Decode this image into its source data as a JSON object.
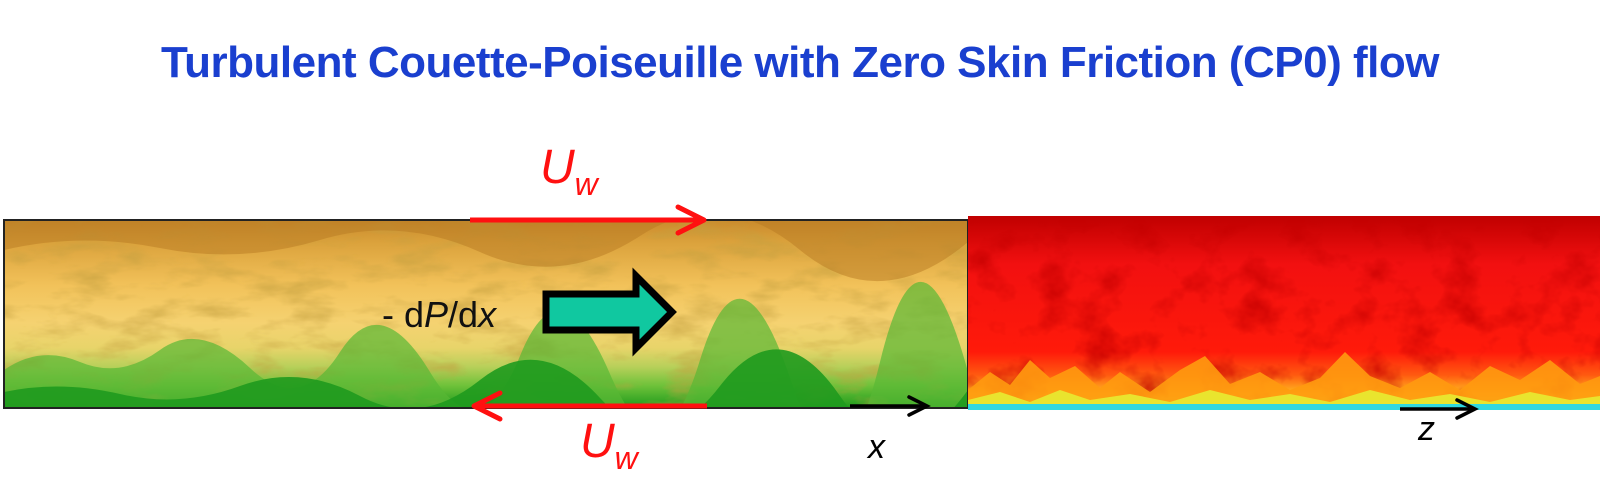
{
  "title": "Turbulent Couette-Poiseuille with Zero Skin Friction (CP0) flow",
  "colors": {
    "title": "#1a3fcf",
    "wall_arrow": "#ff1010",
    "axis_arrow": "#000000",
    "pressure_arrow_fill": "#10c8a0",
    "pressure_arrow_outline": "#000000"
  },
  "top_wall_label": {
    "symbol": "U",
    "subscript": "w"
  },
  "bottom_wall_label": {
    "symbol": "U",
    "subscript": "w"
  },
  "pressure_gradient_label": {
    "prefix": "- d",
    "p": "P",
    "mid": "/d",
    "x": "x"
  },
  "axis_labels": {
    "streamwise": "x",
    "spanwise": "z"
  },
  "panels": [
    {
      "name": "streamwise-wall-normal-slice",
      "colormap": "yellow-orange-green"
    },
    {
      "name": "spanwise-wall-normal-slice",
      "colormap": "red-yellow-cyan"
    }
  ],
  "icons": {
    "top_wall_arrow": "arrow-right-icon",
    "bottom_wall_arrow": "arrow-left-icon",
    "pressure_arrow": "block-arrow-right-icon",
    "x_axis_arrow": "arrow-right-icon",
    "z_axis_arrow": "arrow-right-icon"
  }
}
